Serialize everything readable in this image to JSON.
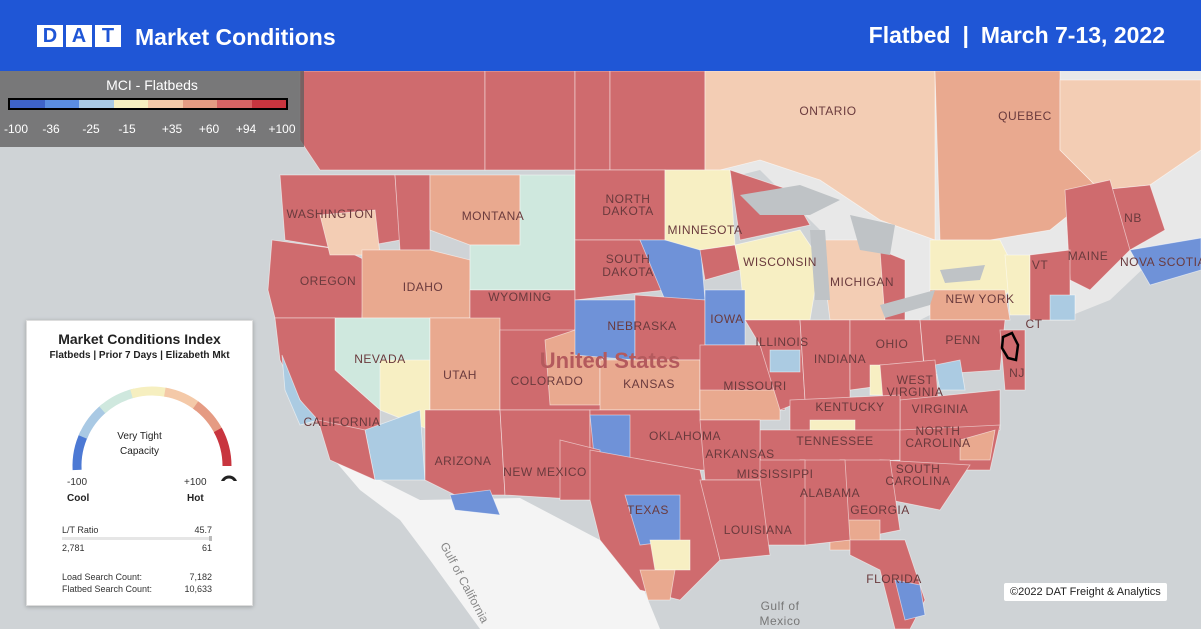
{
  "header": {
    "logo_letters": [
      "D",
      "A",
      "T"
    ],
    "title": "Market Conditions",
    "equipment": "Flatbed",
    "separator": "|",
    "date_range": "March 7-13, 2022"
  },
  "legend": {
    "title": "MCI - Flatbeds",
    "ticks": [
      "-100",
      "-36",
      "-25",
      "-15",
      "+35",
      "+60",
      "+94",
      "+100"
    ],
    "colors": [
      "#3e63c9",
      "#5b8de0",
      "#a9c9e4",
      "#f6efc0",
      "#f4c9a8",
      "#e59b83",
      "#d76465",
      "#c8353f"
    ]
  },
  "map": {
    "colors": {
      "ocean": "#cfd3d6",
      "canada_land": "#e8e8e8",
      "mexico_land": "#f4f4f4",
      "hot": "#cf6b6e",
      "warm": "#e9a98f",
      "mild": "#f3cdb4",
      "neutral": "#f7efc3",
      "cool": "#abcbe2",
      "cold": "#6f92d8",
      "mint": "#cfe8de",
      "lakes": "#bfc3c6"
    },
    "labels": {
      "ontario": "ONTARIO",
      "quebec": "QUEBEC",
      "washington": "WASHINGTON",
      "oregon": "OREGON",
      "idaho": "IDAHO",
      "montana": "MONTANA",
      "wyoming": "WYOMING",
      "north_dakota_1": "NORTH",
      "north_dakota_2": "DAKOTA",
      "south_dakota_1": "SOUTH",
      "south_dakota_2": "DAKOTA",
      "minnesota": "MINNESOTA",
      "wisconsin": "WISCONSIN",
      "michigan": "MICHIGAN",
      "iowa": "IOWA",
      "nebraska": "NEBRASKA",
      "nevada": "NEVADA",
      "utah": "UTAH",
      "colorado": "COLORADO",
      "kansas": "KANSAS",
      "missouri": "MISSOURI",
      "illinois": "ILLINOIS",
      "indiana": "INDIANA",
      "ohio": "OHIO",
      "penn": "PENN",
      "new_york": "NEW YORK",
      "maine": "MAINE",
      "nb": "NB",
      "nova_scotia": "NOVA SCOTIA",
      "vt": "VT",
      "ct": "CT",
      "nj": "NJ",
      "west_virginia_1": "WEST",
      "west_virginia_2": "VIRGINIA",
      "virginia": "VIRGINIA",
      "kentucky": "KENTUCKY",
      "tennessee": "TENNESSEE",
      "north_carolina_1": "NORTH",
      "north_carolina_2": "CAROLINA",
      "south_carolina_1": "SOUTH",
      "south_carolina_2": "CAROLINA",
      "georgia": "GEORGIA",
      "alabama": "ALABAMA",
      "mississippi": "MISSISSIPPI",
      "arkansas": "ARKANSAS",
      "louisiana": "LOUISIANA",
      "oklahoma": "OKLAHOMA",
      "texas": "TEXAS",
      "new_mexico": "NEW MEXICO",
      "arizona": "ARIZONA",
      "california": "CALIFORNIA",
      "florida": "FLORIDA",
      "united_states": "United States",
      "gulf_of_mexico_1": "Gulf of",
      "gulf_of_mexico_2": "Mexico",
      "gulf_of_california": "Gulf of California"
    }
  },
  "index_card": {
    "title": "Market Conditions Index",
    "subtitle": "Flatbeds | Prior 7 Days | Elizabeth Mkt",
    "gauge_text": "Very Tight Capacity",
    "gauge_value": 100,
    "min_value": "-100",
    "max_value": "+100",
    "min_label": "Cool",
    "max_label": "Hot",
    "lt_ratio_label": "L/T Ratio",
    "lt_ratio_value": "45.7",
    "load_count_small": "2,781",
    "truck_count_small": "61",
    "load_search_label": "Load Search Count:",
    "load_search_value": "7,182",
    "flatbed_search_label": "Flatbed Search Count:",
    "flatbed_search_value": "10,633"
  },
  "copyright": "©2022 DAT Freight & Analytics"
}
